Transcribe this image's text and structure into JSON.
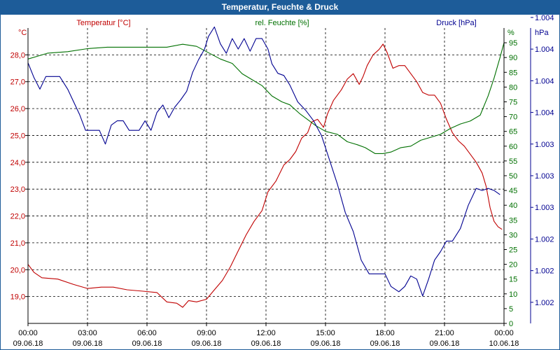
{
  "window": {
    "title": "Temperatur, Feuchte & Druck"
  },
  "chart_data": {
    "type": "line",
    "title": "Temperatur, Feuchte & Druck",
    "x_ticks": [
      {
        "h": 0,
        "time": "00:00",
        "date": "09.06.18"
      },
      {
        "h": 3,
        "time": "03:00",
        "date": "09.06.18"
      },
      {
        "h": 6,
        "time": "06:00",
        "date": "09.06.18"
      },
      {
        "h": 9,
        "time": "09:00",
        "date": "09.06.18"
      },
      {
        "h": 12,
        "time": "12:00",
        "date": "09.06.18"
      },
      {
        "h": 15,
        "time": "15:00",
        "date": "09.06.18"
      },
      {
        "h": 18,
        "time": "18:00",
        "date": "09.06.18"
      },
      {
        "h": 21,
        "time": "21:00",
        "date": "09.06.18"
      },
      {
        "h": 24,
        "time": "00:00",
        "date": "10.06.18"
      }
    ],
    "xlim": [
      0,
      24
    ],
    "axes": {
      "temp": {
        "unit": "°C",
        "ylim": [
          18,
          29
        ],
        "ticks": [
          19,
          20,
          21,
          22,
          23,
          24,
          25,
          26,
          27,
          28
        ],
        "tick_labels": [
          "19,0",
          "20,0",
          "21,0",
          "22,0",
          "23,0",
          "24,0",
          "25,0",
          "26,0",
          "27,0",
          "28,0"
        ]
      },
      "hum": {
        "unit": "%",
        "ylim": [
          0,
          100
        ],
        "ticks": [
          0,
          5,
          10,
          15,
          20,
          25,
          30,
          35,
          40,
          45,
          50,
          55,
          60,
          65,
          70,
          75,
          80,
          85,
          90,
          95
        ],
        "tick_labels": [
          "0",
          "5",
          "10",
          "15",
          "20",
          "25",
          "30",
          "35",
          "40",
          "45",
          "50",
          "55",
          "60",
          "65",
          "70",
          "75",
          "80",
          "85",
          "90",
          "95"
        ]
      },
      "press": {
        "unit": "hPa",
        "ylim": [
          1001.5,
          1004.3
        ],
        "ticks": [
          1001.7,
          1002.0,
          1002.3,
          1002.6,
          1002.9,
          1003.2,
          1003.5,
          1003.8,
          1004.1,
          1004.4
        ],
        "tick_labels": [
          "1.002",
          "1.002",
          "1.002",
          "1.003",
          "1.003",
          "1.003",
          "1.004",
          "1.004",
          "1.004",
          "1.004"
        ]
      }
    },
    "series": [
      {
        "name": "Temperatur [°C]",
        "axis": "temp",
        "color": "#c00000",
        "points": [
          [
            0,
            20.2
          ],
          [
            0.3,
            19.9
          ],
          [
            0.7,
            19.7
          ],
          [
            1.5,
            19.65
          ],
          [
            2.3,
            19.45
          ],
          [
            3,
            19.3
          ],
          [
            3.7,
            19.35
          ],
          [
            4.3,
            19.35
          ],
          [
            5,
            19.25
          ],
          [
            5.8,
            19.2
          ],
          [
            6.5,
            19.15
          ],
          [
            7,
            18.8
          ],
          [
            7.5,
            18.75
          ],
          [
            7.8,
            18.6
          ],
          [
            8.1,
            18.85
          ],
          [
            8.5,
            18.8
          ],
          [
            9,
            18.9
          ],
          [
            9.4,
            19.25
          ],
          [
            9.8,
            19.6
          ],
          [
            10.2,
            20.1
          ],
          [
            10.6,
            20.7
          ],
          [
            11,
            21.3
          ],
          [
            11.4,
            21.8
          ],
          [
            11.8,
            22.2
          ],
          [
            12.1,
            22.9
          ],
          [
            12.5,
            23.3
          ],
          [
            12.9,
            23.9
          ],
          [
            13.2,
            24.1
          ],
          [
            13.5,
            24.4
          ],
          [
            13.8,
            24.9
          ],
          [
            14.1,
            25.1
          ],
          [
            14.3,
            25.5
          ],
          [
            14.6,
            25.6
          ],
          [
            14.9,
            25.3
          ],
          [
            15.1,
            25.8
          ],
          [
            15.4,
            26.3
          ],
          [
            15.8,
            26.7
          ],
          [
            16.1,
            27.1
          ],
          [
            16.4,
            27.3
          ],
          [
            16.7,
            26.9
          ],
          [
            16.9,
            27.2
          ],
          [
            17.1,
            27.6
          ],
          [
            17.4,
            28.0
          ],
          [
            17.7,
            28.2
          ],
          [
            17.9,
            28.4
          ],
          [
            18.1,
            28.1
          ],
          [
            18.4,
            27.5
          ],
          [
            18.7,
            27.6
          ],
          [
            19.0,
            27.6
          ],
          [
            19.3,
            27.3
          ],
          [
            19.6,
            27.0
          ],
          [
            19.9,
            26.6
          ],
          [
            20.2,
            26.5
          ],
          [
            20.5,
            26.5
          ],
          [
            20.8,
            26.2
          ],
          [
            21.1,
            25.6
          ],
          [
            21.4,
            25.1
          ],
          [
            21.7,
            24.8
          ],
          [
            22.0,
            24.6
          ],
          [
            22.3,
            24.3
          ],
          [
            22.6,
            24.0
          ],
          [
            22.9,
            23.6
          ],
          [
            23.1,
            23.1
          ],
          [
            23.3,
            22.3
          ],
          [
            23.5,
            21.8
          ],
          [
            23.7,
            21.6
          ],
          [
            23.9,
            21.5
          ]
        ]
      },
      {
        "name": "rel. Feuchte [%]",
        "axis": "hum",
        "color": "#007000",
        "points": [
          [
            0,
            89.5
          ],
          [
            0.5,
            90.5
          ],
          [
            1,
            91.5
          ],
          [
            2,
            92
          ],
          [
            3,
            93
          ],
          [
            4,
            93.5
          ],
          [
            5,
            93.5
          ],
          [
            6,
            93.5
          ],
          [
            7,
            93.5
          ],
          [
            7.8,
            94.5
          ],
          [
            8.5,
            93.8
          ],
          [
            9,
            92
          ],
          [
            9.7,
            89.5
          ],
          [
            10.3,
            88
          ],
          [
            10.8,
            84.5
          ],
          [
            11.3,
            82.5
          ],
          [
            11.8,
            80.5
          ],
          [
            12.3,
            77
          ],
          [
            12.8,
            75
          ],
          [
            13.2,
            74
          ],
          [
            13.7,
            71
          ],
          [
            14.1,
            69
          ],
          [
            14.5,
            67
          ],
          [
            15,
            65
          ],
          [
            15.6,
            64
          ],
          [
            16.1,
            61.5
          ],
          [
            16.6,
            60.5
          ],
          [
            17.0,
            59.5
          ],
          [
            17.5,
            57.5
          ],
          [
            17.9,
            57.5
          ],
          [
            18.3,
            58
          ],
          [
            18.8,
            59.5
          ],
          [
            19.3,
            60
          ],
          [
            19.8,
            62
          ],
          [
            20.3,
            63
          ],
          [
            20.8,
            64
          ],
          [
            21.3,
            66
          ],
          [
            21.8,
            67.5
          ],
          [
            22.3,
            68.5
          ],
          [
            22.8,
            70.5
          ],
          [
            23.2,
            77
          ],
          [
            23.5,
            83
          ],
          [
            23.8,
            90
          ],
          [
            24,
            95
          ]
        ]
      },
      {
        "name": "Druck [hPa]",
        "axis": "press",
        "color": "#000090",
        "points": [
          [
            0,
            1003.97
          ],
          [
            0.3,
            1003.83
          ],
          [
            0.6,
            1003.72
          ],
          [
            0.9,
            1003.84
          ],
          [
            1.2,
            1003.84
          ],
          [
            1.6,
            1003.84
          ],
          [
            2,
            1003.72
          ],
          [
            2.3,
            1003.6
          ],
          [
            2.6,
            1003.48
          ],
          [
            2.9,
            1003.33
          ],
          [
            3.3,
            1003.33
          ],
          [
            3.6,
            1003.33
          ],
          [
            3.9,
            1003.2
          ],
          [
            4.2,
            1003.38
          ],
          [
            4.5,
            1003.42
          ],
          [
            4.8,
            1003.42
          ],
          [
            5.1,
            1003.33
          ],
          [
            5.6,
            1003.33
          ],
          [
            5.9,
            1003.42
          ],
          [
            6.2,
            1003.33
          ],
          [
            6.5,
            1003.5
          ],
          [
            6.8,
            1003.57
          ],
          [
            7.1,
            1003.45
          ],
          [
            7.4,
            1003.55
          ],
          [
            7.7,
            1003.62
          ],
          [
            8.0,
            1003.7
          ],
          [
            8.3,
            1003.88
          ],
          [
            8.6,
            1004.0
          ],
          [
            8.9,
            1004.1
          ],
          [
            9.1,
            1004.22
          ],
          [
            9.4,
            1004.31
          ],
          [
            9.7,
            1004.15
          ],
          [
            10.0,
            1004.06
          ],
          [
            10.3,
            1004.2
          ],
          [
            10.6,
            1004.1
          ],
          [
            10.9,
            1004.2
          ],
          [
            11.2,
            1004.08
          ],
          [
            11.5,
            1004.2
          ],
          [
            11.8,
            1004.2
          ],
          [
            12.1,
            1004.1
          ],
          [
            12.3,
            1003.96
          ],
          [
            12.6,
            1003.87
          ],
          [
            12.9,
            1003.85
          ],
          [
            13.2,
            1003.76
          ],
          [
            13.6,
            1003.6
          ],
          [
            14.0,
            1003.52
          ],
          [
            14.4,
            1003.42
          ],
          [
            14.8,
            1003.28
          ],
          [
            15.2,
            1003.05
          ],
          [
            15.6,
            1002.82
          ],
          [
            16.0,
            1002.55
          ],
          [
            16.4,
            1002.37
          ],
          [
            16.8,
            1002.1
          ],
          [
            17.2,
            1001.97
          ],
          [
            17.6,
            1001.97
          ],
          [
            18.0,
            1001.97
          ],
          [
            18.3,
            1001.85
          ],
          [
            18.7,
            1001.8
          ],
          [
            19.0,
            1001.85
          ],
          [
            19.3,
            1001.95
          ],
          [
            19.6,
            1001.92
          ],
          [
            19.9,
            1001.76
          ],
          [
            20.2,
            1001.92
          ],
          [
            20.5,
            1002.1
          ],
          [
            20.8,
            1002.18
          ],
          [
            21.1,
            1002.28
          ],
          [
            21.4,
            1002.28
          ],
          [
            21.8,
            1002.4
          ],
          [
            22.2,
            1002.62
          ],
          [
            22.6,
            1002.78
          ],
          [
            22.9,
            1002.76
          ],
          [
            23.2,
            1002.78
          ],
          [
            23.5,
            1002.76
          ],
          [
            23.8,
            1002.72
          ]
        ]
      }
    ]
  }
}
